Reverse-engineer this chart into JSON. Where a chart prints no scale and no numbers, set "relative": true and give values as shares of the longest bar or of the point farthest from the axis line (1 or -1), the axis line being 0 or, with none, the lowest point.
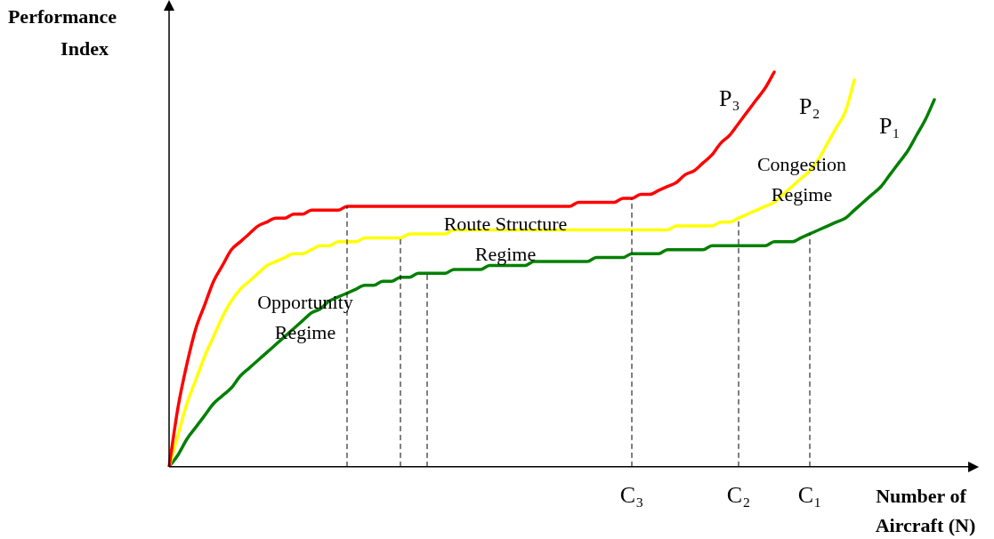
{
  "chart_data": {
    "type": "line",
    "relative": true,
    "xlabel": "Number of Aircraft (N)",
    "ylabel": "Performance Index",
    "categories": [
      null,
      null,
      null,
      null,
      null,
      null,
      null,
      null,
      null,
      null,
      null,
      null,
      null,
      null,
      null,
      null,
      null,
      null,
      null,
      null,
      null,
      null,
      null,
      null,
      null,
      null,
      null,
      null,
      null,
      null,
      null,
      null,
      null,
      null,
      null,
      null,
      null,
      null,
      null,
      null,
      null,
      null,
      null,
      null,
      null,
      null,
      null,
      null,
      null,
      null,
      null,
      null,
      "C₃",
      null,
      null,
      null,
      null,
      null,
      null,
      null,
      null,
      null,
      null,
      null,
      "C₂",
      null,
      null,
      null,
      null,
      null,
      null,
      null,
      "C₁",
      null,
      null,
      null,
      null,
      null,
      null,
      null,
      null,
      null,
      null,
      null,
      null,
      null,
      null,
      null,
      null,
      null,
      null
    ],
    "series": [
      {
        "name": "P₃",
        "color": "#ff0000",
        "values": [
          0,
          0.15,
          0.26,
          0.35,
          0.41,
          0.47,
          0.51,
          0.55,
          0.57,
          0.59,
          0.61,
          0.62,
          0.63,
          0.63,
          0.64,
          0.64,
          0.65,
          0.65,
          0.65,
          0.65,
          0.66,
          0.66,
          0.66,
          0.66,
          0.66,
          0.66,
          0.66,
          0.66,
          0.66,
          0.66,
          0.66,
          0.66,
          0.66,
          0.66,
          0.66,
          0.66,
          0.66,
          0.66,
          0.66,
          0.66,
          0.66,
          0.66,
          0.66,
          0.66,
          0.66,
          0.66,
          0.67,
          0.67,
          0.67,
          0.67,
          0.67,
          0.68,
          0.68,
          0.69,
          0.69,
          0.7,
          0.71,
          0.72,
          0.74,
          0.75,
          0.77,
          0.79,
          0.82,
          0.84,
          0.87,
          0.9,
          0.93,
          0.96,
          1,
          null,
          null,
          null,
          null,
          null,
          null,
          null,
          null,
          null,
          null,
          null,
          null,
          null,
          null,
          null,
          null,
          null,
          null,
          null,
          null,
          null,
          null
        ]
      },
      {
        "name": "P₂",
        "color": "#ffff00",
        "values": [
          0,
          0.08,
          0.16,
          0.22,
          0.28,
          0.33,
          0.38,
          0.42,
          0.45,
          0.47,
          0.49,
          0.51,
          0.52,
          0.53,
          0.54,
          0.54,
          0.55,
          0.56,
          0.56,
          0.57,
          0.57,
          0.57,
          0.58,
          0.58,
          0.58,
          0.58,
          0.58,
          0.59,
          0.59,
          0.59,
          0.59,
          0.59,
          0.6,
          0.6,
          0.6,
          0.6,
          0.6,
          0.6,
          0.6,
          0.6,
          0.6,
          0.6,
          0.6,
          0.6,
          0.6,
          0.6,
          0.6,
          0.6,
          0.6,
          0.6,
          0.6,
          0.6,
          0.6,
          0.6,
          0.6,
          0.6,
          0.6,
          0.61,
          0.61,
          0.61,
          0.61,
          0.61,
          0.62,
          0.62,
          0.63,
          0.64,
          0.65,
          0.66,
          0.67,
          0.69,
          0.71,
          0.73,
          0.75,
          0.78,
          0.82,
          0.86,
          0.9,
          0.98,
          null,
          null,
          null,
          null,
          null,
          null,
          null,
          null,
          null,
          null,
          null,
          null,
          null
        ]
      },
      {
        "name": "P₁",
        "color": "#008000",
        "values": [
          0,
          0.03,
          0.07,
          0.1,
          0.13,
          0.16,
          0.18,
          0.2,
          0.23,
          0.25,
          0.27,
          0.29,
          0.31,
          0.33,
          0.35,
          0.37,
          0.39,
          0.4,
          0.42,
          0.43,
          0.44,
          0.45,
          0.46,
          0.46,
          0.47,
          0.47,
          0.48,
          0.48,
          0.49,
          0.49,
          0.49,
          0.49,
          0.5,
          0.5,
          0.5,
          0.5,
          0.51,
          0.51,
          0.51,
          0.51,
          0.51,
          0.52,
          0.52,
          0.52,
          0.52,
          0.52,
          0.52,
          0.52,
          0.53,
          0.53,
          0.53,
          0.53,
          0.54,
          0.54,
          0.54,
          0.54,
          0.55,
          0.55,
          0.55,
          0.55,
          0.55,
          0.56,
          0.56,
          0.56,
          0.56,
          0.56,
          0.56,
          0.56,
          0.57,
          0.57,
          0.57,
          0.58,
          0.59,
          0.6,
          0.61,
          0.62,
          0.63,
          0.65,
          0.67,
          0.69,
          0.71,
          0.74,
          0.77,
          0.8,
          0.84,
          0.88,
          0.93,
          null,
          null,
          null,
          null
        ]
      }
    ],
    "ref_lines": [
      {
        "axis": "x",
        "value": "C₃",
        "line_style": "dashed",
        "color": "#000000"
      },
      {
        "axis": "x",
        "value": "C₂",
        "line_style": "dashed",
        "color": "#000000"
      },
      {
        "axis": "x",
        "value": "C₁",
        "line_style": "dashed",
        "color": "#000000"
      }
    ],
    "annotations": [
      "Opportunity\nRegime",
      "Route Structure\nRegime",
      "Congestion\nRegime"
    ],
    "legend": false,
    "grid": false,
    "marker": "none",
    "line_style": "solid"
  }
}
